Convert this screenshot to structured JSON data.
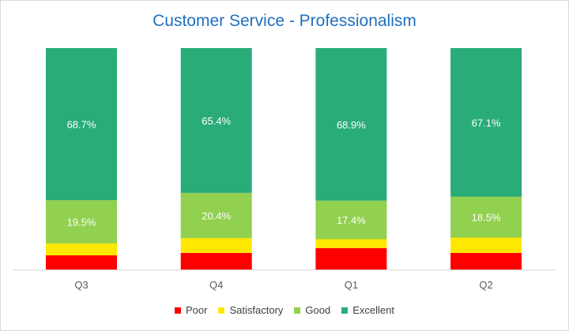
{
  "chart_data": {
    "type": "bar",
    "stacked": "percent",
    "title": "Customer Service - Professionalism",
    "categories": [
      "Q3",
      "Q4",
      "Q1",
      "Q2"
    ],
    "series": [
      {
        "name": "Poor",
        "color": "#FF0000",
        "values": [
          6.4,
          7.5,
          9.7,
          7.5
        ],
        "labels_shown": false
      },
      {
        "name": "Satisfactory",
        "color": "#FFE800",
        "values": [
          5.4,
          6.7,
          4.0,
          6.9
        ],
        "labels_shown": false
      },
      {
        "name": "Good",
        "color": "#92D050",
        "values": [
          19.5,
          20.4,
          17.4,
          18.5
        ],
        "labels_shown": true
      },
      {
        "name": "Excellent",
        "color": "#2AAC78",
        "values": [
          68.7,
          65.4,
          68.9,
          67.1
        ],
        "labels_shown": true
      }
    ],
    "ylim": [
      0,
      100
    ],
    "grid": false,
    "legend": "bottom"
  }
}
